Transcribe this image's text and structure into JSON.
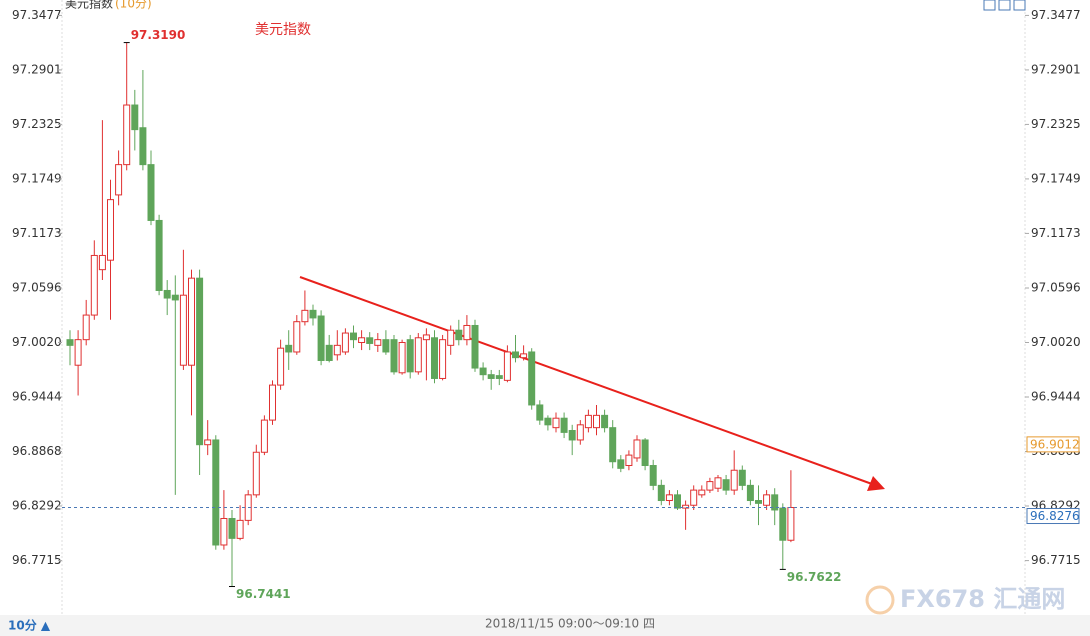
{
  "chart_data": {
    "type": "candlestick",
    "title": "美元指数",
    "period": "(10分)",
    "annotation": "美元指数",
    "footer_period": "10分 ▲",
    "footer_time": "2018/11/15  09:00～09:10  四",
    "watermark": "FX678 汇通网",
    "ylim": [
      96.714,
      97.364
    ],
    "yticks": [
      96.7715,
      96.8292,
      96.8868,
      96.9444,
      {
        "value": 97.002,
        "label": "97.0020"
      },
      97.0596,
      97.1173,
      97.1749,
      97.2325,
      97.2901,
      97.3477
    ],
    "grid": false,
    "up_color": "#e03030",
    "down_color": "#5fa55a",
    "last_price": 96.8276,
    "marker_price": 96.9012,
    "extremes": [
      {
        "value": 97.319,
        "label": "97.3190"
      },
      96.7441,
      96.7622
    ],
    "open": [
      97.005,
      96.978,
      97.005,
      97.031,
      97.079,
      97.089,
      97.158,
      97.19,
      97.253,
      97.229,
      97.19,
      97.131,
      97.057,
      97.052,
      96.978,
      96.978,
      97.07,
      96.894,
      96.899,
      96.788,
      96.816,
      96.795,
      96.814,
      96.841,
      96.886,
      96.92,
      96.957,
      96.999,
      96.992,
      97.024,
      97.036,
      97.03,
      96.999,
      96.989,
      96.992,
      97.012,
      97.002,
      97.007,
      96.999,
      97.005,
      97.005,
      96.97,
      97.005,
      96.971,
      97.005,
      97.007,
      96.964,
      96.999,
      97.015,
      97.005,
      97.02,
      96.975,
      96.968,
      96.967,
      96.962,
      96.992,
      96.986,
      96.992,
      96.936,
      96.922,
      96.912,
      96.922,
      96.909,
      96.899,
      96.912,
      96.912,
      96.925,
      96.912,
      96.878,
      96.872,
      96.88,
      96.899,
      96.872,
      96.851,
      96.835,
      96.841,
      96.827,
      96.83,
      96.841,
      96.846,
      96.848,
      96.857,
      96.846,
      96.867,
      96.851,
      96.835,
      96.83,
      96.841,
      96.827,
      96.793
    ],
    "high": [
      97.015,
      97.015,
      97.047,
      97.11,
      97.237,
      97.174,
      97.205,
      97.319,
      97.269,
      97.29,
      97.205,
      97.137,
      97.068,
      97.073,
      97.1,
      97.079,
      97.079,
      96.92,
      96.904,
      96.846,
      96.825,
      96.83,
      96.846,
      96.894,
      96.925,
      96.962,
      97.005,
      97.015,
      97.031,
      97.057,
      97.042,
      97.036,
      97.01,
      97.015,
      97.017,
      97.02,
      97.015,
      97.013,
      97.012,
      97.015,
      97.01,
      97.005,
      97.01,
      97.012,
      97.017,
      97.015,
      97.01,
      97.02,
      97.026,
      97.031,
      97.026,
      96.981,
      96.973,
      96.973,
      96.999,
      97.01,
      96.999,
      96.996,
      96.941,
      96.925,
      96.928,
      96.928,
      96.915,
      96.92,
      96.931,
      96.936,
      96.931,
      96.92,
      96.883,
      96.888,
      96.904,
      96.901,
      96.878,
      96.857,
      96.846,
      96.846,
      96.835,
      96.851,
      96.851,
      96.859,
      96.862,
      96.862,
      96.888,
      96.872,
      96.857,
      96.851,
      96.846,
      96.848,
      96.832,
      96.867
    ],
    "low": [
      96.978,
      96.946,
      96.999,
      97.026,
      97.068,
      97.026,
      97.147,
      97.184,
      97.205,
      97.184,
      97.126,
      97.052,
      97.031,
      96.841,
      96.973,
      96.925,
      96.862,
      96.883,
      96.783,
      96.783,
      96.7441,
      96.793,
      96.809,
      96.838,
      96.883,
      96.915,
      96.952,
      96.973,
      96.989,
      97.02,
      97.02,
      96.978,
      96.981,
      96.983,
      96.989,
      96.996,
      96.994,
      96.994,
      96.992,
      96.989,
      96.968,
      96.968,
      96.964,
      96.968,
      96.962,
      96.959,
      96.962,
      96.989,
      96.999,
      96.999,
      96.971,
      96.962,
      96.952,
      96.957,
      96.96,
      96.981,
      96.983,
      96.931,
      96.915,
      96.909,
      96.907,
      96.901,
      96.883,
      96.894,
      96.907,
      96.904,
      96.907,
      96.869,
      96.865,
      96.867,
      96.876,
      96.867,
      96.846,
      96.83,
      96.83,
      96.825,
      96.804,
      96.825,
      96.838,
      96.843,
      96.844,
      96.841,
      96.841,
      96.846,
      96.83,
      96.809,
      96.825,
      96.809,
      96.7622,
      96.791
    ],
    "close": [
      96.999,
      97.005,
      97.031,
      97.094,
      97.094,
      97.153,
      97.19,
      97.253,
      97.227,
      97.19,
      97.131,
      97.057,
      97.049,
      97.047,
      97.052,
      97.07,
      96.894,
      96.899,
      96.788,
      96.816,
      96.795,
      96.814,
      96.841,
      96.886,
      96.92,
      96.957,
      96.996,
      96.992,
      97.024,
      97.036,
      97.028,
      96.983,
      96.983,
      96.999,
      97.012,
      97.005,
      97.007,
      97.001,
      97.005,
      96.992,
      96.971,
      97.002,
      96.971,
      97.007,
      97.01,
      96.964,
      97.005,
      97.015,
      97.005,
      97.02,
      96.975,
      96.968,
      96.964,
      96.964,
      96.992,
      96.986,
      96.99,
      96.936,
      96.92,
      96.915,
      96.922,
      96.907,
      96.899,
      96.915,
      96.925,
      96.925,
      96.912,
      96.876,
      96.869,
      96.883,
      96.899,
      96.872,
      96.851,
      96.835,
      96.841,
      96.827,
      96.83,
      96.846,
      96.846,
      96.855,
      96.859,
      96.846,
      96.867,
      96.851,
      96.835,
      96.832,
      96.841,
      96.825,
      96.793,
      96.8276
    ]
  }
}
